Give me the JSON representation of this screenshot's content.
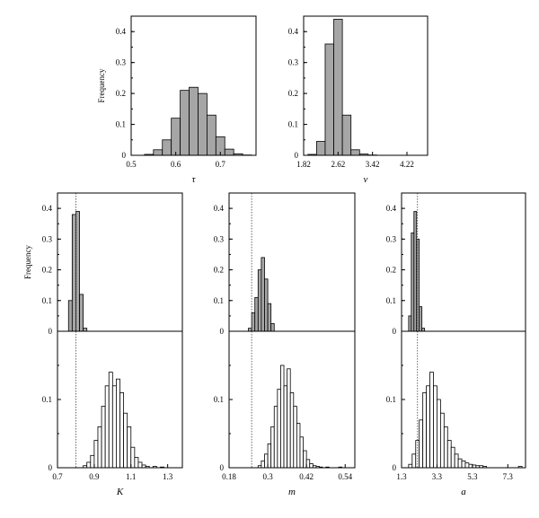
{
  "colors": {
    "filled": "#a6a6a6",
    "open": "#ffffff",
    "stroke": "#000000"
  },
  "chart_data": [
    {
      "type": "bar",
      "xlabel": "τ",
      "ylabel": "Frequency",
      "xlim": [
        0.5,
        0.78
      ],
      "ylim": [
        0,
        0.45
      ],
      "xticks": [
        0.5,
        0.6,
        0.7
      ],
      "xtick_labels": [
        "0.5",
        "0.6",
        "0.7"
      ],
      "yticks": [
        0,
        0.1,
        0.2,
        0.3,
        0.4
      ],
      "ytick_labels": [
        "0",
        "0.1",
        "0.2",
        "0.3",
        "0.4"
      ],
      "series": [
        {
          "fill": "filled",
          "bin_edges": [
            0.51,
            0.53,
            0.55,
            0.57,
            0.59,
            0.61,
            0.63,
            0.65,
            0.67,
            0.69,
            0.71,
            0.73,
            0.75,
            0.77
          ],
          "values": [
            0.0,
            0.003,
            0.018,
            0.05,
            0.12,
            0.21,
            0.22,
            0.2,
            0.13,
            0.06,
            0.02,
            0.005,
            0.001
          ]
        }
      ]
    },
    {
      "type": "bar",
      "xlabel": "ν",
      "ylabel": "Frequency",
      "xlim": [
        1.82,
        4.7
      ],
      "ylim": [
        0,
        0.45
      ],
      "xticks": [
        1.82,
        2.62,
        3.42,
        4.22
      ],
      "xtick_labels": [
        "1.82",
        "2.62",
        "3.42",
        "4.22"
      ],
      "yticks": [
        0,
        0.1,
        0.2,
        0.3,
        0.4
      ],
      "ytick_labels": [
        "0",
        "0.1",
        "0.2",
        "0.3",
        "0.4"
      ],
      "series": [
        {
          "fill": "filled",
          "bin_edges": [
            1.92,
            2.12,
            2.32,
            2.52,
            2.72,
            2.92,
            3.12,
            3.32,
            3.52,
            3.72,
            3.92,
            4.12
          ],
          "values": [
            0.003,
            0.045,
            0.36,
            0.44,
            0.13,
            0.018,
            0.004,
            0.001,
            0.0,
            0.0,
            0.0
          ]
        }
      ]
    },
    {
      "type": "bar",
      "xlabel": "K",
      "ylabel": "Frequency",
      "xlim": [
        0.7,
        1.38
      ],
      "ylim": [
        0,
        0.45
      ],
      "reference_line": 0.8,
      "xticks": [
        0.7,
        0.9,
        1.1,
        1.3
      ],
      "xtick_labels": [
        "0.7",
        "0.9",
        "1.1",
        "1.3"
      ],
      "yticks": [
        0,
        0.1,
        0.2,
        0.3,
        0.4
      ],
      "ytick_labels": [
        "0",
        "0.1",
        "0.2",
        "0.3",
        "0.4"
      ],
      "series": [
        {
          "fill": "filled",
          "bin_edges": [
            0.76,
            0.78,
            0.8,
            0.82,
            0.84,
            0.86
          ],
          "values": [
            0.1,
            0.38,
            0.39,
            0.12,
            0.01
          ]
        }
      ]
    },
    {
      "type": "bar",
      "xlabel": "K",
      "ylabel": "",
      "xlim": [
        0.7,
        1.38
      ],
      "ylim": [
        0,
        0.2
      ],
      "reference_line": 0.8,
      "xticks": [
        0.7,
        0.9,
        1.1,
        1.3
      ],
      "xtick_labels": [
        "0.7",
        "0.9",
        "1.1",
        "1.3"
      ],
      "yticks": [
        0,
        0.1
      ],
      "ytick_labels": [
        "0",
        "0.1"
      ],
      "series": [
        {
          "fill": "open",
          "bin_edges": [
            0.84,
            0.86,
            0.88,
            0.9,
            0.92,
            0.94,
            0.96,
            0.98,
            1.0,
            1.02,
            1.04,
            1.06,
            1.08,
            1.1,
            1.12,
            1.14,
            1.16,
            1.18,
            1.2,
            1.22,
            1.24,
            1.26,
            1.28,
            1.3
          ],
          "values": [
            0.003,
            0.008,
            0.018,
            0.04,
            0.06,
            0.09,
            0.12,
            0.14,
            0.12,
            0.13,
            0.11,
            0.08,
            0.06,
            0.03,
            0.015,
            0.008,
            0.004,
            0.002,
            0.0,
            0.002,
            0.0,
            0.001,
            0.0
          ]
        }
      ]
    },
    {
      "type": "bar",
      "xlabel": "m",
      "ylabel": "",
      "xlim": [
        0.18,
        0.57
      ],
      "ylim": [
        0,
        0.45
      ],
      "reference_line": 0.25,
      "xticks": [
        0.18,
        0.3,
        0.42,
        0.54
      ],
      "xtick_labels": [
        "0.18",
        "0.3",
        "0.42",
        "0.54"
      ],
      "yticks": [
        0,
        0.1,
        0.2,
        0.3,
        0.4
      ],
      "ytick_labels": [
        "0",
        "0.1",
        "0.2",
        "0.3",
        "0.4"
      ],
      "series": [
        {
          "fill": "filled",
          "bin_edges": [
            0.24,
            0.25,
            0.26,
            0.27,
            0.28,
            0.29,
            0.3,
            0.31,
            0.32
          ],
          "values": [
            0.01,
            0.06,
            0.11,
            0.2,
            0.24,
            0.17,
            0.09,
            0.025
          ]
        }
      ]
    },
    {
      "type": "bar",
      "xlabel": "m",
      "ylabel": "",
      "xlim": [
        0.18,
        0.57
      ],
      "ylim": [
        0,
        0.2
      ],
      "reference_line": 0.25,
      "xticks": [
        0.18,
        0.3,
        0.42,
        0.54
      ],
      "xtick_labels": [
        "0.18",
        "0.3",
        "0.42",
        "0.54"
      ],
      "yticks": [
        0,
        0.1
      ],
      "ytick_labels": [
        "0",
        "0.1"
      ],
      "series": [
        {
          "fill": "open",
          "bin_edges": [
            0.27,
            0.28,
            0.29,
            0.3,
            0.31,
            0.32,
            0.33,
            0.34,
            0.35,
            0.36,
            0.37,
            0.38,
            0.39,
            0.4,
            0.41,
            0.42,
            0.43,
            0.44,
            0.45,
            0.46,
            0.47,
            0.48,
            0.49,
            0.5,
            0.51,
            0.52,
            0.53
          ],
          "values": [
            0.003,
            0.01,
            0.02,
            0.035,
            0.06,
            0.09,
            0.115,
            0.15,
            0.12,
            0.145,
            0.11,
            0.09,
            0.065,
            0.045,
            0.025,
            0.012,
            0.006,
            0.003,
            0.002,
            0.001,
            0.0,
            0.001,
            0.0,
            0.0,
            0.0,
            0.001
          ]
        }
      ]
    },
    {
      "type": "bar",
      "xlabel": "a",
      "ylabel": "",
      "xlim": [
        1.3,
        8.3
      ],
      "ylim": [
        0,
        0.45
      ],
      "reference_line": 2.2,
      "xticks": [
        1.3,
        3.3,
        5.3,
        7.3
      ],
      "xtick_labels": [
        "1.3",
        "3.3",
        "5.3",
        "7.3"
      ],
      "yticks": [
        0,
        0.1,
        0.2,
        0.3,
        0.4
      ],
      "ytick_labels": [
        "0",
        "0.1",
        "0.2",
        "0.3",
        "0.4"
      ],
      "series": [
        {
          "fill": "filled",
          "bin_edges": [
            1.7,
            1.85,
            2.0,
            2.15,
            2.3,
            2.45,
            2.6
          ],
          "values": [
            0.05,
            0.32,
            0.39,
            0.3,
            0.08,
            0.01
          ]
        }
      ]
    },
    {
      "type": "bar",
      "xlabel": "a",
      "ylabel": "",
      "xlim": [
        1.3,
        8.3
      ],
      "ylim": [
        0,
        0.2
      ],
      "reference_line": 2.2,
      "xticks": [
        1.3,
        3.3,
        5.3,
        7.3
      ],
      "xtick_labels": [
        "1.3",
        "3.3",
        "5.3",
        "7.3"
      ],
      "yticks": [
        0,
        0.1
      ],
      "ytick_labels": [
        "0",
        "0.1"
      ],
      "series": [
        {
          "fill": "open",
          "bin_edges": [
            1.7,
            1.9,
            2.1,
            2.3,
            2.5,
            2.7,
            2.9,
            3.1,
            3.3,
            3.5,
            3.7,
            3.9,
            4.1,
            4.3,
            4.5,
            4.7,
            4.9,
            5.1,
            5.3,
            5.5,
            5.7,
            5.9,
            6.1,
            6.3,
            6.5,
            6.7,
            6.9,
            7.1,
            7.3,
            7.5,
            7.7,
            7.9,
            8.1
          ],
          "values": [
            0.005,
            0.02,
            0.04,
            0.07,
            0.11,
            0.12,
            0.14,
            0.12,
            0.1,
            0.08,
            0.06,
            0.04,
            0.03,
            0.02,
            0.013,
            0.01,
            0.007,
            0.005,
            0.004,
            0.003,
            0.003,
            0.002,
            0.0,
            0.0,
            0.0,
            0.0,
            0.0,
            0.0,
            0.0,
            0.0,
            0.0,
            0.002
          ]
        }
      ]
    }
  ]
}
